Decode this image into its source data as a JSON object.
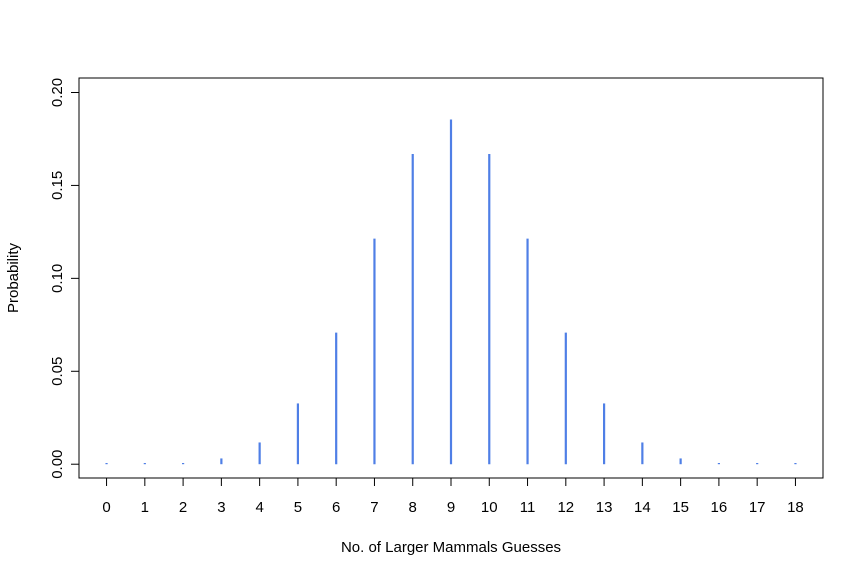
{
  "chart_data": {
    "type": "bar",
    "style": "vertical-lines",
    "title": "",
    "xlabel": "No. of Larger Mammals Guesses",
    "ylabel": "Probability",
    "x": [
      0,
      1,
      2,
      3,
      4,
      5,
      6,
      7,
      8,
      9,
      10,
      11,
      12,
      13,
      14,
      15,
      16,
      17,
      18
    ],
    "values": [
      3.8e-06,
      6.87e-05,
      0.000584,
      0.00311,
      0.0117,
      0.0327,
      0.0708,
      0.1214,
      0.1669,
      0.1855,
      0.1669,
      0.1214,
      0.0708,
      0.0327,
      0.0117,
      0.00311,
      0.000584,
      6.87e-05,
      3.8e-06
    ],
    "xlim": [
      -0.72,
      18.72
    ],
    "ylim": [
      -0.00742,
      0.2078
    ],
    "yticks": [
      0.0,
      0.05,
      0.1,
      0.15,
      0.2
    ],
    "ytick_labels": [
      "0.00",
      "0.05",
      "0.10",
      "0.15",
      "0.20"
    ],
    "xtick_labels": [
      "0",
      "1",
      "2",
      "3",
      "4",
      "5",
      "6",
      "7",
      "8",
      "9",
      "10",
      "11",
      "12",
      "13",
      "14",
      "15",
      "16",
      "17",
      "18"
    ],
    "bar_color": "#4f7fe6",
    "grid": false,
    "legend": "none"
  }
}
